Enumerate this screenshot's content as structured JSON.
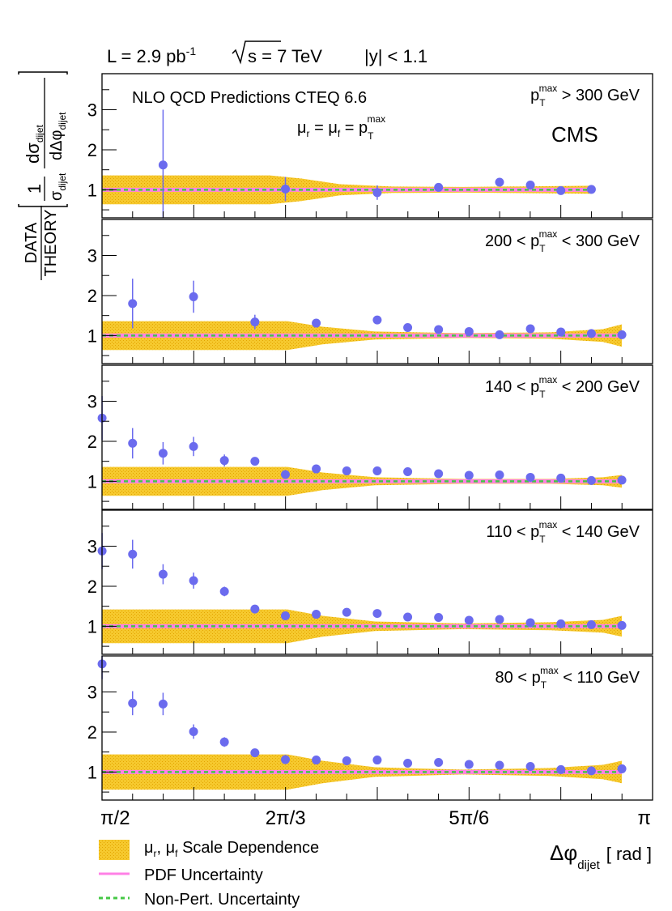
{
  "header": {
    "lumi_main": "L = 2.9 pb",
    "lumi_sup": "-1",
    "sqrt_s_rest": "s = 7 TeV",
    "rapidity": "|y| < 1.1"
  },
  "annotations": {
    "nlo_label": "NLO QCD Predictions CTEQ 6.6",
    "scale_mu": "μ",
    "scale_r": "r",
    "scale_eq1": " = ",
    "scale_f": "f",
    "scale_eq2": " = p",
    "scale_T": "T",
    "scale_max": "max",
    "experiment": "CMS"
  },
  "y_axis_label": {
    "d_sigma": "dσ",
    "dijet": "dijet",
    "one": "1",
    "sigma": "σ",
    "d_delta_phi": "dΔφ",
    "data": "DATA",
    "theory": "THEORY"
  },
  "x_axis": {
    "phi": "Δφ",
    "dijet": "dijet",
    "unit": "[ rad ]",
    "tick_labels": [
      "π/2",
      "2π/3",
      "5π/6",
      "π"
    ]
  },
  "legend": {
    "scale": "μ",
    "scale_r": "r",
    "scale_comma": ", μ",
    "scale_f": "f",
    "scale_rest": " Scale Dependence",
    "pdf": "PDF Uncertainty",
    "nonpert": "Non-Pert. Uncertainty"
  },
  "colors": {
    "data_marker": "#6b6bee",
    "scale_band": "#f6c92e",
    "pdf_line": "#ff80e6",
    "nonpert_line": "#45c845",
    "frame": "#000000"
  },
  "chart_data": {
    "type": "scatter",
    "xlim": [
      1.5708,
      3.1416
    ],
    "ylim": [
      0.3,
      3.9
    ],
    "yticks": [
      1,
      2,
      3
    ],
    "y_tick_labels": [
      "1",
      "2",
      "3"
    ],
    "panels": [
      {
        "label_pre": "",
        "label_mid": "p",
        "label_T": "T",
        "label_max": "max",
        "label_post": " > 300 GeV",
        "points": [
          {
            "x": 1.745,
            "y": 1.62,
            "err": 1.38
          },
          {
            "x": 2.094,
            "y": 1.02,
            "err": 0.3
          },
          {
            "x": 2.356,
            "y": 0.93,
            "err": 0.18
          },
          {
            "x": 2.531,
            "y": 1.06,
            "err": 0.1
          },
          {
            "x": 2.705,
            "y": 1.19,
            "err": 0.05
          },
          {
            "x": 2.793,
            "y": 1.12,
            "err": 0.04
          },
          {
            "x": 2.88,
            "y": 0.98,
            "err": 0.03
          },
          {
            "x": 2.967,
            "y": 1.01,
            "err": 0.02
          }
        ],
        "band_x": [
          1.5708,
          2.05,
          2.14,
          2.25,
          2.4,
          2.6,
          2.85,
          2.967
        ],
        "band_half": [
          0.36,
          0.36,
          0.28,
          0.14,
          0.08,
          0.07,
          0.09,
          0.1
        ]
      },
      {
        "label_pre": "200 < ",
        "label_mid": "p",
        "label_T": "T",
        "label_max": "max",
        "label_post": " < 300 GeV",
        "points": [
          {
            "x": 1.658,
            "y": 1.8,
            "err": 0.62
          },
          {
            "x": 1.832,
            "y": 1.97,
            "err": 0.4
          },
          {
            "x": 2.007,
            "y": 1.34,
            "err": 0.18
          },
          {
            "x": 2.182,
            "y": 1.31,
            "err": 0.08
          },
          {
            "x": 2.356,
            "y": 1.39,
            "err": 0.06
          },
          {
            "x": 2.443,
            "y": 1.2,
            "err": 0.05
          },
          {
            "x": 2.531,
            "y": 1.15,
            "err": 0.04
          },
          {
            "x": 2.618,
            "y": 1.1,
            "err": 0.03
          },
          {
            "x": 2.705,
            "y": 1.02,
            "err": 0.03
          },
          {
            "x": 2.793,
            "y": 1.17,
            "err": 0.03
          },
          {
            "x": 2.88,
            "y": 1.09,
            "err": 0.02
          },
          {
            "x": 2.967,
            "y": 1.05,
            "err": 0.02
          },
          {
            "x": 3.054,
            "y": 1.02,
            "err": 0.02
          }
        ],
        "band_x": [
          1.5708,
          2.1,
          2.2,
          2.35,
          2.6,
          2.85,
          3.0,
          3.054
        ],
        "band_half": [
          0.36,
          0.36,
          0.22,
          0.1,
          0.06,
          0.08,
          0.16,
          0.28
        ]
      },
      {
        "label_pre": "140 < ",
        "label_mid": "p",
        "label_T": "T",
        "label_max": "max",
        "label_post": " < 200 GeV",
        "points": [
          {
            "x": 1.571,
            "y": 2.58,
            "err": 0.55
          },
          {
            "x": 1.658,
            "y": 1.95,
            "err": 0.38
          },
          {
            "x": 1.745,
            "y": 1.7,
            "err": 0.28
          },
          {
            "x": 1.832,
            "y": 1.87,
            "err": 0.24
          },
          {
            "x": 1.92,
            "y": 1.52,
            "err": 0.15
          },
          {
            "x": 2.007,
            "y": 1.5,
            "err": 0.1
          },
          {
            "x": 2.094,
            "y": 1.17,
            "err": 0.07
          },
          {
            "x": 2.182,
            "y": 1.31,
            "err": 0.05
          },
          {
            "x": 2.269,
            "y": 1.26,
            "err": 0.04
          },
          {
            "x": 2.356,
            "y": 1.26,
            "err": 0.04
          },
          {
            "x": 2.443,
            "y": 1.24,
            "err": 0.03
          },
          {
            "x": 2.531,
            "y": 1.19,
            "err": 0.03
          },
          {
            "x": 2.618,
            "y": 1.15,
            "err": 0.03
          },
          {
            "x": 2.705,
            "y": 1.16,
            "err": 0.02
          },
          {
            "x": 2.793,
            "y": 1.1,
            "err": 0.02
          },
          {
            "x": 2.88,
            "y": 1.08,
            "err": 0.02
          },
          {
            "x": 2.967,
            "y": 1.02,
            "err": 0.02
          },
          {
            "x": 3.054,
            "y": 1.03,
            "err": 0.02
          }
        ],
        "band_x": [
          1.5708,
          2.1,
          2.2,
          2.35,
          2.6,
          2.85,
          3.0,
          3.054
        ],
        "band_half": [
          0.36,
          0.36,
          0.22,
          0.1,
          0.06,
          0.06,
          0.1,
          0.16
        ]
      },
      {
        "label_pre": "110 < ",
        "label_mid": "p",
        "label_T": "T",
        "label_max": "max",
        "label_post": " < 140 GeV",
        "points": [
          {
            "x": 1.571,
            "y": 2.88,
            "err": 0.45
          },
          {
            "x": 1.658,
            "y": 2.8,
            "err": 0.36
          },
          {
            "x": 1.745,
            "y": 2.3,
            "err": 0.25
          },
          {
            "x": 1.832,
            "y": 2.14,
            "err": 0.2
          },
          {
            "x": 1.92,
            "y": 1.87,
            "err": 0.12
          },
          {
            "x": 2.007,
            "y": 1.43,
            "err": 0.08
          },
          {
            "x": 2.094,
            "y": 1.26,
            "err": 0.06
          },
          {
            "x": 2.182,
            "y": 1.3,
            "err": 0.05
          },
          {
            "x": 2.269,
            "y": 1.35,
            "err": 0.04
          },
          {
            "x": 2.356,
            "y": 1.32,
            "err": 0.04
          },
          {
            "x": 2.443,
            "y": 1.23,
            "err": 0.03
          },
          {
            "x": 2.531,
            "y": 1.22,
            "err": 0.03
          },
          {
            "x": 2.618,
            "y": 1.15,
            "err": 0.03
          },
          {
            "x": 2.705,
            "y": 1.17,
            "err": 0.02
          },
          {
            "x": 2.793,
            "y": 1.09,
            "err": 0.02
          },
          {
            "x": 2.88,
            "y": 1.06,
            "err": 0.02
          },
          {
            "x": 2.967,
            "y": 1.04,
            "err": 0.02
          },
          {
            "x": 3.054,
            "y": 1.02,
            "err": 0.02
          }
        ],
        "band_x": [
          1.5708,
          2.1,
          2.2,
          2.35,
          2.6,
          2.85,
          3.0,
          3.054
        ],
        "band_half": [
          0.42,
          0.42,
          0.26,
          0.12,
          0.07,
          0.1,
          0.16,
          0.26
        ]
      },
      {
        "label_pre": "80 < ",
        "label_mid": "p",
        "label_T": "T",
        "label_max": "max",
        "label_post": " < 110 GeV",
        "points": [
          {
            "x": 1.571,
            "y": 3.7,
            "err": 0.38
          },
          {
            "x": 1.658,
            "y": 2.72,
            "err": 0.3
          },
          {
            "x": 1.745,
            "y": 2.7,
            "err": 0.28
          },
          {
            "x": 1.832,
            "y": 2.01,
            "err": 0.18
          },
          {
            "x": 1.92,
            "y": 1.75,
            "err": 0.12
          },
          {
            "x": 2.007,
            "y": 1.48,
            "err": 0.08
          },
          {
            "x": 2.094,
            "y": 1.31,
            "err": 0.06
          },
          {
            "x": 2.182,
            "y": 1.3,
            "err": 0.05
          },
          {
            "x": 2.269,
            "y": 1.28,
            "err": 0.04
          },
          {
            "x": 2.356,
            "y": 1.3,
            "err": 0.04
          },
          {
            "x": 2.443,
            "y": 1.22,
            "err": 0.03
          },
          {
            "x": 2.531,
            "y": 1.24,
            "err": 0.03
          },
          {
            "x": 2.618,
            "y": 1.19,
            "err": 0.03
          },
          {
            "x": 2.705,
            "y": 1.17,
            "err": 0.02
          },
          {
            "x": 2.793,
            "y": 1.14,
            "err": 0.02
          },
          {
            "x": 2.88,
            "y": 1.06,
            "err": 0.02
          },
          {
            "x": 2.967,
            "y": 1.03,
            "err": 0.02
          },
          {
            "x": 3.054,
            "y": 1.08,
            "err": 0.02
          }
        ],
        "band_x": [
          1.5708,
          2.1,
          2.2,
          2.35,
          2.6,
          2.85,
          3.0,
          3.054
        ],
        "band_half": [
          0.44,
          0.44,
          0.28,
          0.12,
          0.06,
          0.1,
          0.18,
          0.28
        ]
      }
    ]
  }
}
